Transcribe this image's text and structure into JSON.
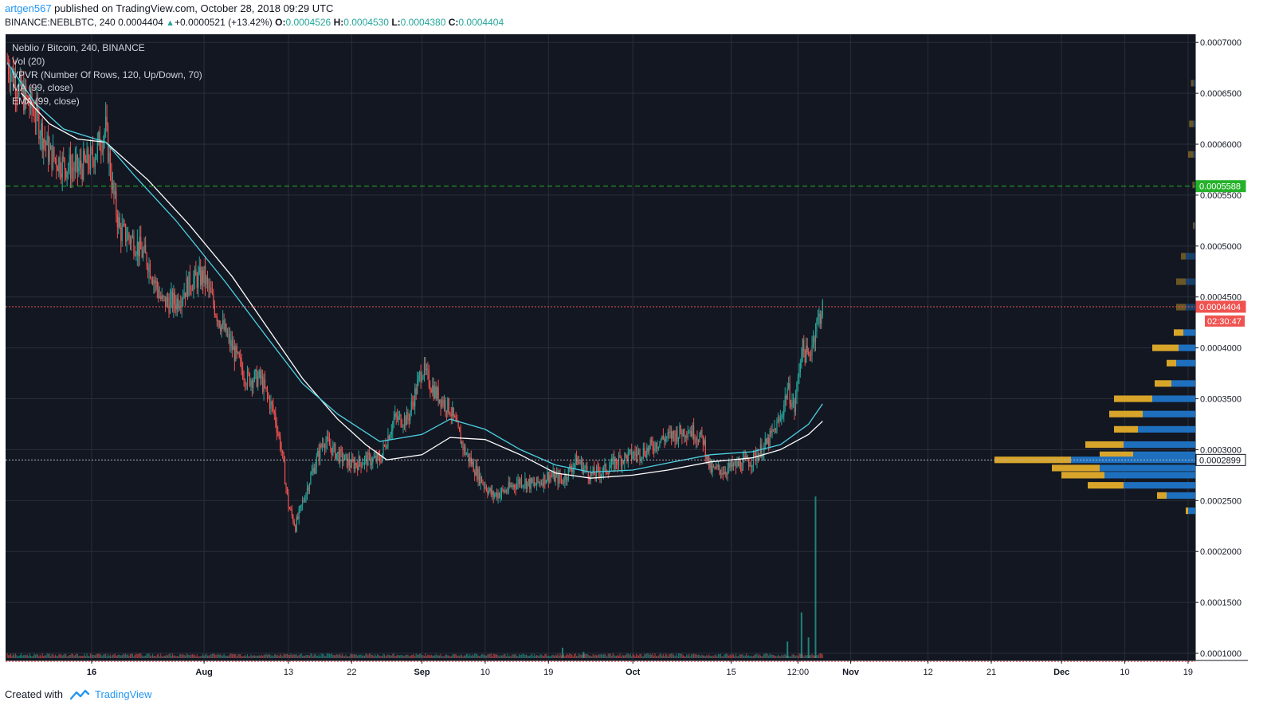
{
  "header": {
    "author": "artgen567",
    "published_text": " published on TradingView.com, October 28, 2018 09:29 UTC",
    "symbol": "BINANCE:NEBLBTC, 240",
    "last_price": "0.0004404",
    "change_arrow": "▲",
    "change": "+0.0000521 (+13.42%)",
    "o_label": "O:",
    "o_value": "0.0004526",
    "h_label": "H:",
    "h_value": "0.0004530",
    "l_label": "L:",
    "l_value": "0.0004380",
    "c_label": "C:",
    "c_value": "0.0004404"
  },
  "legend": {
    "title": "Neblio / Bitcoin, 240, BINANCE",
    "vol": "Vol (20)",
    "vpvr": "VPVR (Number Of Rows, 120, Up/Down, 70)",
    "ma": "MA (99, close)",
    "ema": "EMA (99, close)"
  },
  "footer": {
    "created_with": "Created with",
    "brand": "TradingView"
  },
  "colors": {
    "chart_bg": "#131722",
    "grid": "#2a2e39",
    "candle_up": "#26a69a",
    "candle_down": "#ef5350",
    "ma": "#ffffff",
    "ema": "#4dd0e1",
    "vpvr_up": "#1e70bf",
    "vpvr_down": "#d8a52a",
    "level_green": "#25b22a",
    "last_price_red": "#ef5350"
  },
  "chart_data": {
    "type": "candlestick",
    "title": "Neblio / Bitcoin, 240, BINANCE",
    "y_axis": {
      "range": [
        9.3e-05,
        0.000708
      ],
      "tick_labels": [
        "0.0001000",
        "0.0001500",
        "0.0002000",
        "0.0002500",
        "0.0003000",
        "0.0003500",
        "0.0004000",
        "0.0004500",
        "0.0005000",
        "0.0005500",
        "0.0006000",
        "0.0006500",
        "0.0007000"
      ],
      "tick_values": [
        0.0001,
        0.00015,
        0.0002,
        0.00025,
        0.0003,
        0.00035,
        0.0004,
        0.00045,
        0.0005,
        0.00055,
        0.0006,
        0.00065,
        0.0007
      ]
    },
    "x_axis": {
      "tick_labels": [
        "16",
        "Aug",
        "13",
        "22",
        "Sep",
        "10",
        "19",
        "Oct",
        "15",
        "12:00",
        "Nov",
        "12",
        "21",
        "Dec",
        "10",
        "19"
      ],
      "tick_dates": [
        "2018-07-16",
        "2018-08-01",
        "2018-08-13",
        "2018-08-22",
        "2018-09-01",
        "2018-09-10",
        "2018-09-19",
        "2018-10-01",
        "2018-10-15",
        "2018-10-24T12:00",
        "2018-11-01",
        "2018-11-12",
        "2018-11-21",
        "2018-12-01",
        "2018-12-10",
        "2018-12-19"
      ]
    },
    "price_path": [
      [
        "2018-07-04",
        0.00068
      ],
      [
        "2018-07-06",
        0.00065
      ],
      [
        "2018-07-08",
        0.00063
      ],
      [
        "2018-07-10",
        0.00059
      ],
      [
        "2018-07-12",
        0.00058
      ],
      [
        "2018-07-14",
        0.000575
      ],
      [
        "2018-07-16",
        0.000585
      ],
      [
        "2018-07-18",
        0.000615
      ],
      [
        "2018-07-19",
        0.000555
      ],
      [
        "2018-07-20",
        0.000515
      ],
      [
        "2018-07-22",
        0.000505
      ],
      [
        "2018-07-24",
        0.000485
      ],
      [
        "2018-07-26",
        0.000445
      ],
      [
        "2018-07-28",
        0.000445
      ],
      [
        "2018-07-30",
        0.000465
      ],
      [
        "2018-08-01",
        0.00047
      ],
      [
        "2018-08-03",
        0.00043
      ],
      [
        "2018-08-05",
        0.0004
      ],
      [
        "2018-08-07",
        0.00037
      ],
      [
        "2018-08-09",
        0.00037
      ],
      [
        "2018-08-11",
        0.000335
      ],
      [
        "2018-08-12",
        0.0003
      ],
      [
        "2018-08-13",
        0.000245
      ],
      [
        "2018-08-14",
        0.000225
      ],
      [
        "2018-08-16",
        0.00027
      ],
      [
        "2018-08-18",
        0.00031
      ],
      [
        "2018-08-20",
        0.000295
      ],
      [
        "2018-08-22",
        0.000285
      ],
      [
        "2018-08-24",
        0.00029
      ],
      [
        "2018-08-26",
        0.00029
      ],
      [
        "2018-08-28",
        0.00033
      ],
      [
        "2018-08-30",
        0.00033
      ],
      [
        "2018-09-01",
        0.00038
      ],
      [
        "2018-09-03",
        0.000355
      ],
      [
        "2018-09-05",
        0.00034
      ],
      [
        "2018-09-07",
        0.0003
      ],
      [
        "2018-09-09",
        0.000275
      ],
      [
        "2018-09-11",
        0.000255
      ],
      [
        "2018-09-13",
        0.00026
      ],
      [
        "2018-09-15",
        0.00027
      ],
      [
        "2018-09-17",
        0.000265
      ],
      [
        "2018-09-19",
        0.000275
      ],
      [
        "2018-09-21",
        0.00027
      ],
      [
        "2018-09-23",
        0.00029
      ],
      [
        "2018-09-25",
        0.000275
      ],
      [
        "2018-09-27",
        0.00028
      ],
      [
        "2018-09-29",
        0.00029
      ],
      [
        "2018-10-01",
        0.000295
      ],
      [
        "2018-10-03",
        0.0003
      ],
      [
        "2018-10-05",
        0.00031
      ],
      [
        "2018-10-07",
        0.000315
      ],
      [
        "2018-10-09",
        0.00032
      ],
      [
        "2018-10-11",
        0.00031
      ],
      [
        "2018-10-12",
        0.00028
      ],
      [
        "2018-10-14",
        0.00028
      ],
      [
        "2018-10-16",
        0.000285
      ],
      [
        "2018-10-18",
        0.00029
      ],
      [
        "2018-10-20",
        0.000305
      ],
      [
        "2018-10-22",
        0.00033
      ],
      [
        "2018-10-23",
        0.00036
      ],
      [
        "2018-10-24",
        0.00034
      ],
      [
        "2018-10-25",
        0.0004
      ],
      [
        "2018-10-26",
        0.00039
      ],
      [
        "2018-10-27",
        0.00042
      ],
      [
        "2018-10-28",
        0.00044
      ]
    ],
    "moving_averages": [
      {
        "name": "MA (99, close)",
        "points": [
          [
            "2018-07-06",
            0.00065
          ],
          [
            "2018-07-10",
            0.00062
          ],
          [
            "2018-07-14",
            0.000605
          ],
          [
            "2018-07-18",
            0.000602
          ],
          [
            "2018-07-24",
            0.000565
          ],
          [
            "2018-07-30",
            0.00052
          ],
          [
            "2018-08-05",
            0.00047
          ],
          [
            "2018-08-10",
            0.00042
          ],
          [
            "2018-08-15",
            0.00037
          ],
          [
            "2018-08-20",
            0.00033
          ],
          [
            "2018-08-24",
            0.000305
          ],
          [
            "2018-08-27",
            0.00029
          ],
          [
            "2018-09-01",
            0.000295
          ],
          [
            "2018-09-05",
            0.000312
          ],
          [
            "2018-09-10",
            0.00031
          ],
          [
            "2018-09-15",
            0.000295
          ],
          [
            "2018-09-20",
            0.000277
          ],
          [
            "2018-09-25",
            0.000272
          ],
          [
            "2018-10-01",
            0.000275
          ],
          [
            "2018-10-06",
            0.00028
          ],
          [
            "2018-10-12",
            0.000288
          ],
          [
            "2018-10-18",
            0.000292
          ],
          [
            "2018-10-22",
            0.0003
          ],
          [
            "2018-10-26",
            0.000315
          ],
          [
            "2018-10-28",
            0.000328
          ]
        ]
      },
      {
        "name": "EMA (99, close)",
        "points": [
          [
            "2018-07-04",
            0.00068
          ],
          [
            "2018-07-08",
            0.00064
          ],
          [
            "2018-07-12",
            0.000615
          ],
          [
            "2018-07-18",
            0.000602
          ],
          [
            "2018-07-22",
            0.00057
          ],
          [
            "2018-07-28",
            0.000525
          ],
          [
            "2018-08-04",
            0.000465
          ],
          [
            "2018-08-10",
            0.00041
          ],
          [
            "2018-08-15",
            0.000365
          ],
          [
            "2018-08-20",
            0.000335
          ],
          [
            "2018-08-26",
            0.000308
          ],
          [
            "2018-09-01",
            0.000315
          ],
          [
            "2018-09-05",
            0.00033
          ],
          [
            "2018-09-10",
            0.00032
          ],
          [
            "2018-09-15",
            0.0003
          ],
          [
            "2018-09-20",
            0.000285
          ],
          [
            "2018-09-25",
            0.000278
          ],
          [
            "2018-10-01",
            0.00028
          ],
          [
            "2018-10-06",
            0.000287
          ],
          [
            "2018-10-12",
            0.000295
          ],
          [
            "2018-10-18",
            0.000298
          ],
          [
            "2018-10-22",
            0.000305
          ],
          [
            "2018-10-26",
            0.000325
          ],
          [
            "2018-10-28",
            0.000345
          ]
        ]
      }
    ],
    "volume_spikes": [
      [
        "2018-09-21",
        0.05
      ],
      [
        "2018-09-24",
        0.03
      ],
      [
        "2018-10-23",
        0.08
      ],
      [
        "2018-10-25",
        0.22
      ],
      [
        "2018-10-26",
        0.1
      ],
      [
        "2018-10-27",
        0.78
      ]
    ],
    "vpvr": {
      "rows": [
        {
          "price": 0.00066,
          "up": 0.008,
          "down": 0.01
        },
        {
          "price": 0.00062,
          "up": 0.008,
          "down": 0.018
        },
        {
          "price": 0.00059,
          "up": 0.008,
          "down": 0.022
        },
        {
          "price": 0.00056,
          "up": 0.004,
          "down": 0.008
        },
        {
          "price": 0.00052,
          "up": 0.004,
          "down": 0.006
        },
        {
          "price": 0.00049,
          "up": 0.04,
          "down": 0.02
        },
        {
          "price": 0.000465,
          "up": 0.04,
          "down": 0.04
        },
        {
          "price": 0.00044,
          "up": 0.04,
          "down": 0.04
        },
        {
          "price": 0.000415,
          "up": 0.05,
          "down": 0.04
        },
        {
          "price": 0.0004,
          "up": 0.07,
          "down": 0.11
        },
        {
          "price": 0.000385,
          "up": 0.08,
          "down": 0.04
        },
        {
          "price": 0.000365,
          "up": 0.1,
          "down": 0.07
        },
        {
          "price": 0.00035,
          "up": 0.18,
          "down": 0.16
        },
        {
          "price": 0.000335,
          "up": 0.22,
          "down": 0.14
        },
        {
          "price": 0.00032,
          "up": 0.24,
          "down": 0.1
        },
        {
          "price": 0.000305,
          "up": 0.3,
          "down": 0.16
        },
        {
          "price": 0.000295,
          "up": 0.26,
          "down": 0.14
        },
        {
          "price": 0.00029,
          "up": 0.52,
          "down": 0.32
        },
        {
          "price": 0.000282,
          "up": 0.4,
          "down": 0.2
        },
        {
          "price": 0.000275,
          "up": 0.38,
          "down": 0.18
        },
        {
          "price": 0.000265,
          "up": 0.3,
          "down": 0.15
        },
        {
          "price": 0.000255,
          "up": 0.12,
          "down": 0.04
        },
        {
          "price": 0.00024,
          "up": 0.03,
          "down": 0.01
        }
      ]
    },
    "horizontal_levels": [
      {
        "price": 0.0005588,
        "label": "0.0005588",
        "style": "dashed",
        "color": "#25b22a"
      },
      {
        "price": 0.0004404,
        "label": "0.0004404",
        "style": "dotted",
        "color": "#ef5350"
      },
      {
        "price": 0.0002899,
        "label": "0.0002899",
        "style": "dotted",
        "color": "#b2b5be"
      },
      {
        "price": 9.2e-05,
        "label": "",
        "style": "dotted",
        "color": "#ef5350"
      }
    ],
    "countdown": "02:30:47"
  }
}
